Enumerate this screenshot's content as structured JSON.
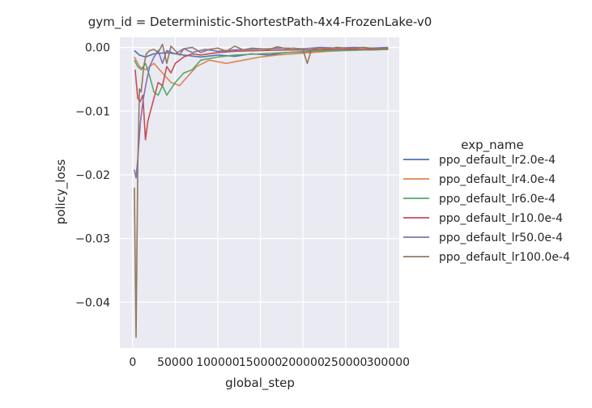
{
  "chart_data": {
    "type": "line",
    "title": "gym_id = Deterministic-ShortestPath-4x4-FrozenLake-v0",
    "xlabel": "global_step",
    "ylabel": "policy_loss",
    "xlim": [
      -15000,
      313000
    ],
    "ylim": [
      -0.0472,
      0.0016
    ],
    "xticks": [
      0,
      50000,
      100000,
      150000,
      200000,
      250000,
      300000
    ],
    "xtick_labels": [
      "0",
      "50000",
      "100000",
      "150000",
      "200000",
      "250000",
      "300000"
    ],
    "yticks": [
      0.0,
      -0.01,
      -0.02,
      -0.03,
      -0.04
    ],
    "ytick_labels": [
      "0.00",
      "−0.01",
      "−0.02",
      "−0.03",
      "−0.04"
    ],
    "grid": true,
    "background": "#EAEAF2",
    "legend": {
      "title": "exp_name",
      "placement": "right"
    },
    "series": [
      {
        "name": "ppo_default_lr2.0e-4",
        "color": "#4C72B0",
        "x": [
          2000,
          8000,
          15000,
          25000,
          40000,
          60000,
          80000,
          100000,
          120000,
          140000,
          160000,
          180000,
          200000,
          220000,
          240000,
          260000,
          280000,
          300000
        ],
        "values": [
          -0.0005,
          -0.0012,
          -0.0015,
          -0.001,
          -0.0008,
          -0.0012,
          -0.0015,
          -0.0012,
          -0.0014,
          -0.001,
          -0.0012,
          -0.0008,
          -0.0007,
          -0.0006,
          -0.0005,
          -0.0004,
          -0.0004,
          -0.0003
        ]
      },
      {
        "name": "ppo_default_lr4.0e-4",
        "color": "#DD8452",
        "x": [
          2000,
          8000,
          15000,
          25000,
          35000,
          45000,
          55000,
          65000,
          75000,
          90000,
          110000,
          130000,
          150000,
          170000,
          190000,
          210000,
          230000,
          250000,
          270000,
          300000
        ],
        "values": [
          -0.0015,
          -0.003,
          -0.0035,
          -0.0025,
          -0.004,
          -0.0055,
          -0.006,
          -0.0045,
          -0.003,
          -0.002,
          -0.0025,
          -0.002,
          -0.0015,
          -0.0012,
          -0.001,
          -0.0008,
          -0.0006,
          -0.0005,
          -0.0004,
          -0.0003
        ]
      },
      {
        "name": "ppo_default_lr6.0e-4",
        "color": "#55A868",
        "x": [
          2000,
          6000,
          10000,
          15000,
          20000,
          25000,
          30000,
          35000,
          40000,
          50000,
          60000,
          70000,
          80000,
          100000,
          120000,
          150000,
          180000,
          210000,
          240000,
          270000,
          300000
        ],
        "values": [
          -0.002,
          -0.003,
          -0.0035,
          -0.0025,
          -0.0045,
          -0.007,
          -0.0075,
          -0.006,
          -0.0075,
          -0.0055,
          -0.004,
          -0.0035,
          -0.002,
          -0.0015,
          -0.0012,
          -0.001,
          -0.0008,
          -0.0006,
          -0.0005,
          -0.0004,
          -0.0003
        ]
      },
      {
        "name": "ppo_default_lr10.0e-4",
        "color": "#C44E52",
        "x": [
          3000,
          6000,
          9000,
          12000,
          15000,
          18000,
          22000,
          26000,
          30000,
          35000,
          40000,
          45000,
          50000,
          60000,
          70000,
          80000,
          100000,
          120000,
          150000,
          180000,
          210000,
          240000,
          270000,
          300000
        ],
        "values": [
          -0.0035,
          -0.008,
          -0.0085,
          -0.0075,
          -0.0145,
          -0.0115,
          -0.0095,
          -0.0075,
          -0.0055,
          -0.006,
          -0.003,
          -0.004,
          -0.0025,
          -0.0015,
          -0.001,
          -0.0012,
          -0.0008,
          -0.0006,
          -0.0005,
          -0.0004,
          -0.0004,
          -0.0003,
          -0.0003,
          -0.0002
        ]
      },
      {
        "name": "ppo_default_lr50.0e-4",
        "color": "#8172B3",
        "x": [
          2000,
          4000,
          6000,
          9000,
          12000,
          16000,
          20000,
          25000,
          30000,
          35000,
          40000,
          50000,
          60000,
          70000,
          85000,
          100000,
          120000,
          140000,
          160000,
          180000,
          200000,
          220000,
          240000,
          260000,
          280000,
          300000
        ],
        "values": [
          -0.0192,
          -0.0205,
          -0.0175,
          -0.012,
          -0.0085,
          -0.0055,
          -0.003,
          -0.0015,
          -0.0005,
          -0.0025,
          -0.0005,
          -0.001,
          -0.0002,
          -0.0008,
          -0.0003,
          -0.0006,
          -0.0004,
          -0.0003,
          -0.0002,
          -0.0001,
          -0.0002,
          0.0,
          -0.0001,
          0.0,
          -0.0001,
          0.0
        ]
      },
      {
        "name": "ppo_default_lr100.0e-4",
        "color": "#937860",
        "x": [
          2000,
          4000,
          6000,
          8000,
          10000,
          13000,
          16000,
          20000,
          25000,
          30000,
          35000,
          40000,
          45000,
          50000,
          55000,
          60000,
          70000,
          80000,
          90000,
          100000,
          110000,
          120000,
          130000,
          140000,
          150000,
          160000,
          170000,
          180000,
          190000,
          200000,
          205000,
          210000,
          220000,
          230000,
          240000,
          250000,
          260000,
          270000,
          280000,
          290000,
          300000
        ],
        "values": [
          -0.022,
          -0.0455,
          -0.019,
          -0.0065,
          -0.007,
          -0.003,
          -0.001,
          -0.0005,
          -0.0003,
          -0.0008,
          0.0005,
          -0.0025,
          0.0002,
          -0.0005,
          -0.0012,
          -0.0002,
          0.0,
          -0.0008,
          -0.0003,
          -0.0001,
          -0.0006,
          0.0002,
          -0.0004,
          -0.0001,
          -0.0002,
          -0.0003,
          0.0001,
          -0.0002,
          -0.0001,
          -0.0004,
          -0.0025,
          -0.0003,
          -0.0001,
          -0.0002,
          0.0,
          -0.0001,
          -0.0002,
          0.0,
          -0.0001,
          -0.0002,
          -0.0001
        ]
      }
    ]
  }
}
